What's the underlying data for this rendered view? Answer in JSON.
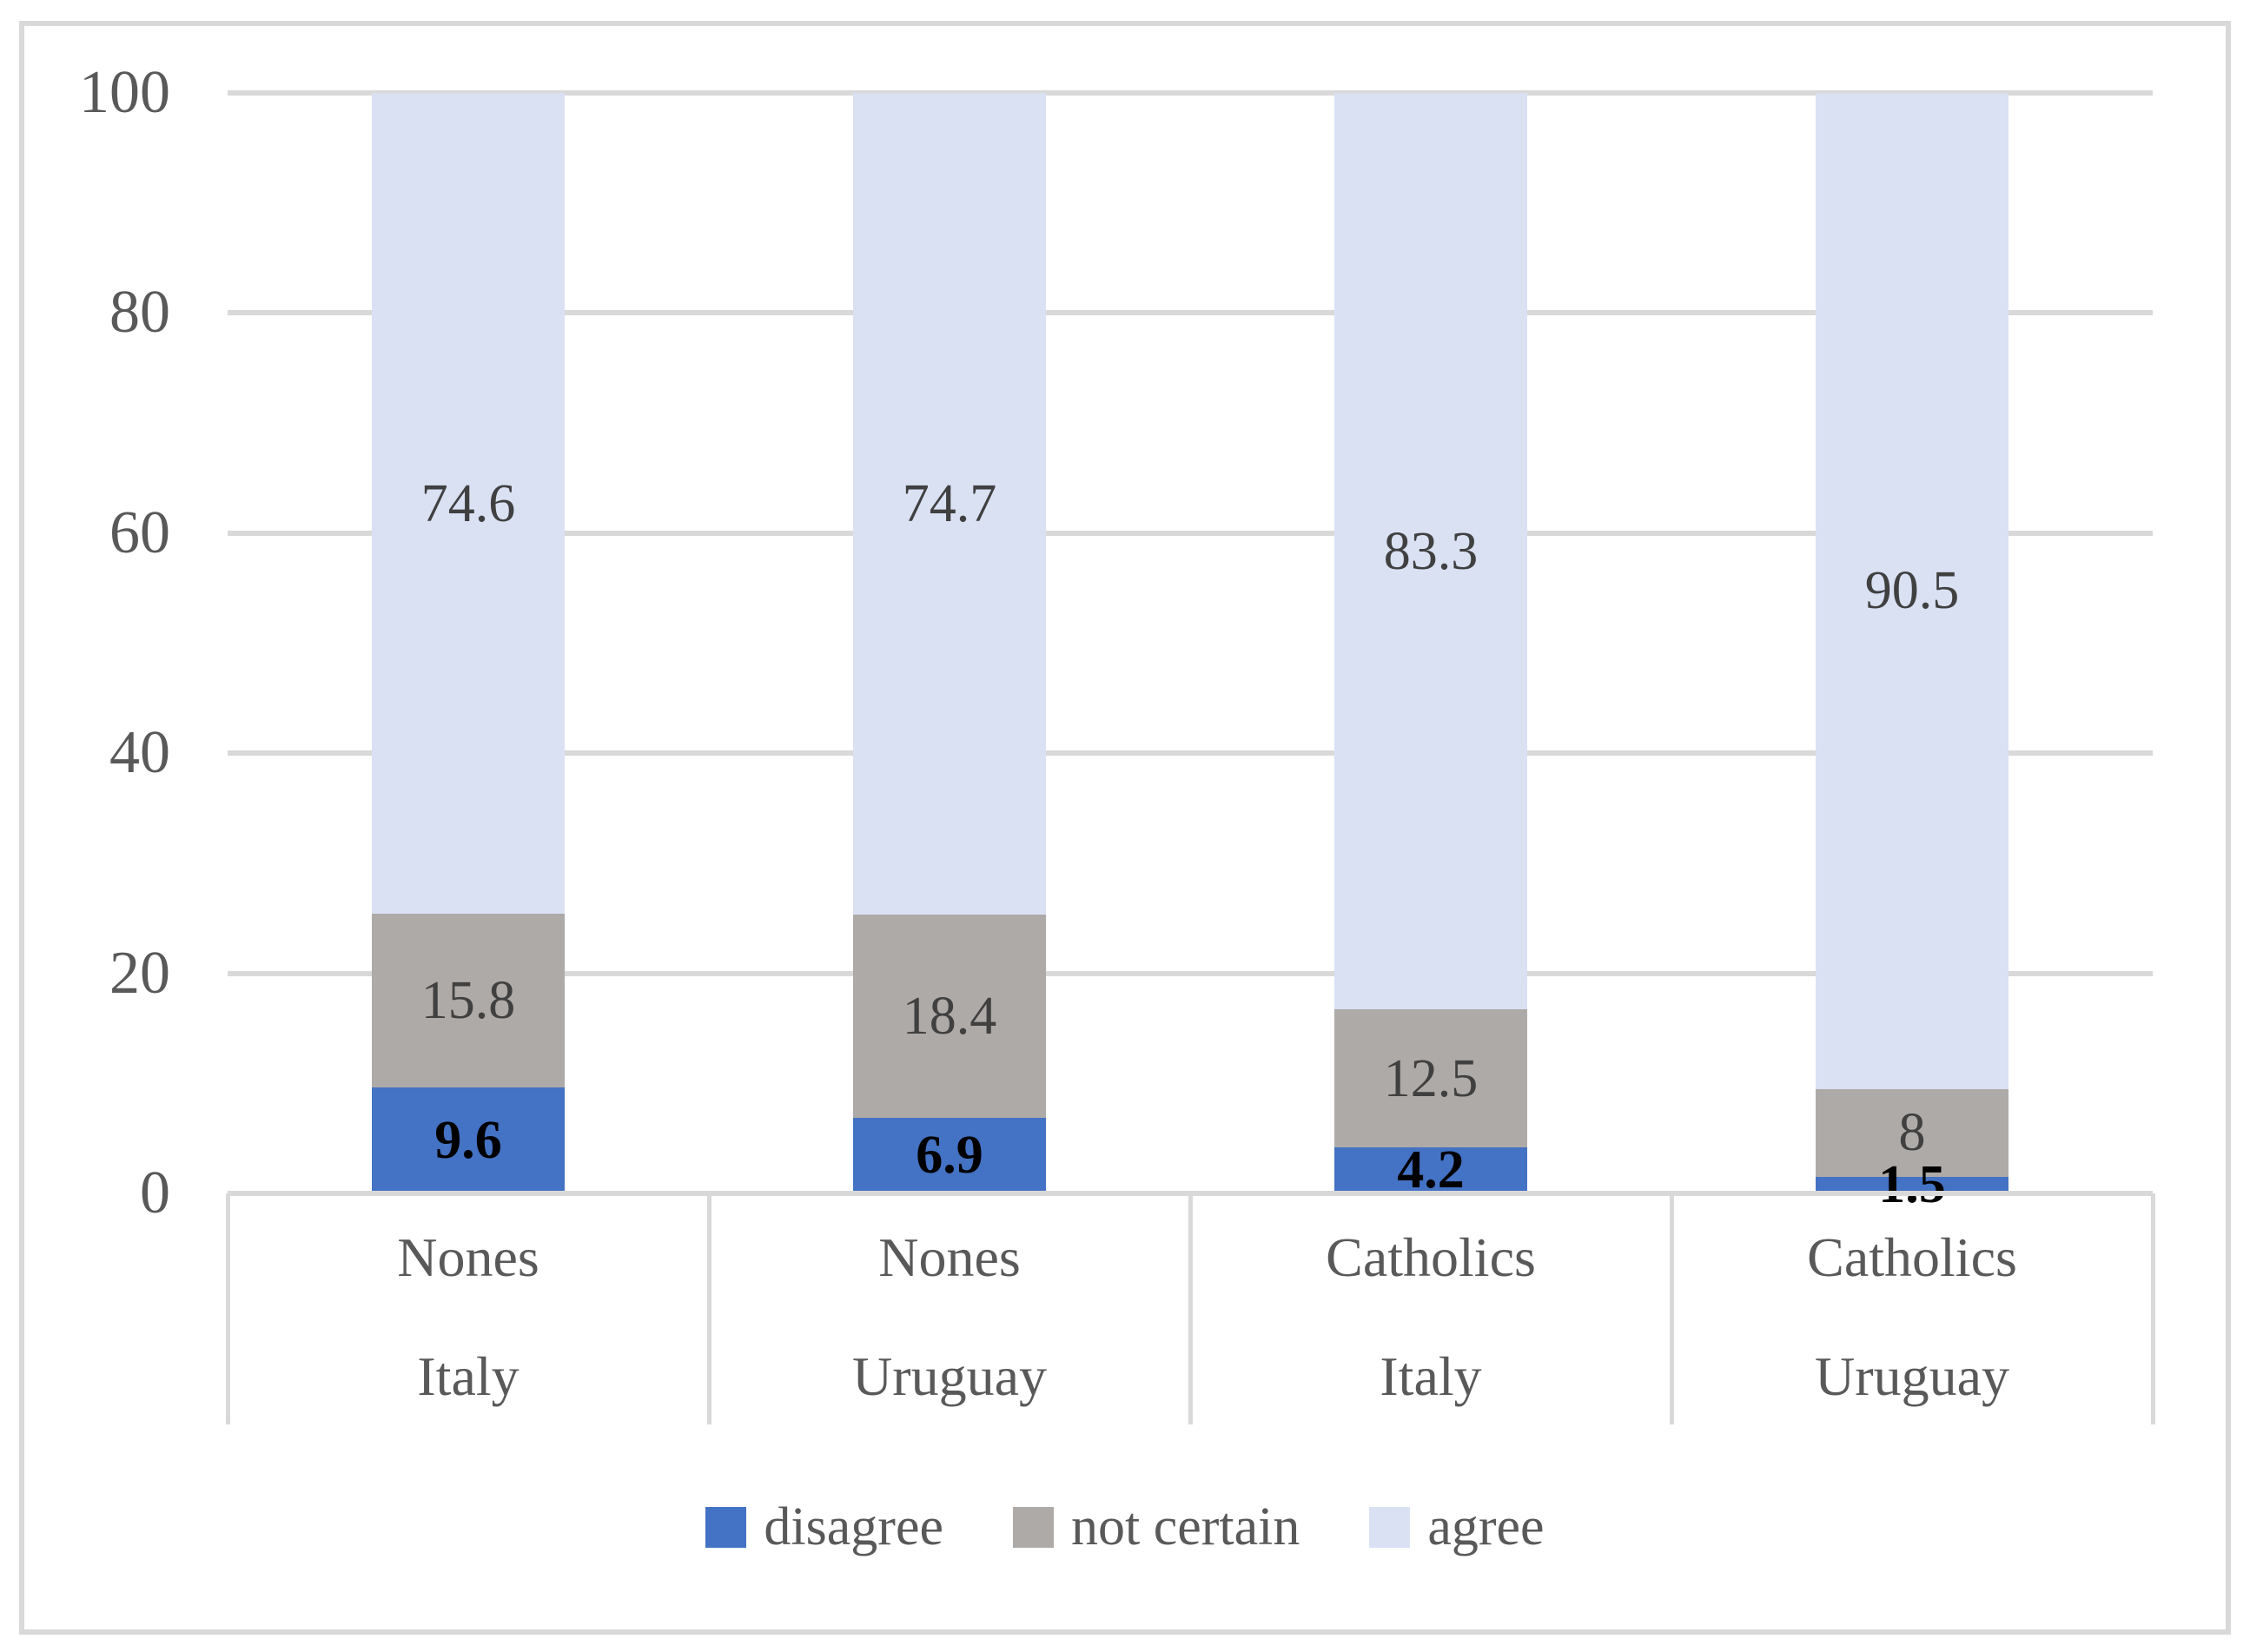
{
  "chart_data": {
    "type": "bar",
    "stacked": true,
    "orientation": "vertical",
    "title": "",
    "xlabel": "",
    "ylabel": "",
    "categories": [
      {
        "religion": "Nones",
        "country": "Italy"
      },
      {
        "religion": "Nones",
        "country": "Uruguay"
      },
      {
        "religion": "Catholics",
        "country": "Italy"
      },
      {
        "religion": "Catholics",
        "country": "Uruguay"
      }
    ],
    "series": [
      {
        "name": "disagree",
        "color": "#4472c4",
        "values": [
          9.6,
          6.9,
          4.2,
          1.5
        ],
        "labels": [
          "9.6",
          "6.9",
          "4.2",
          "1.5"
        ],
        "label_color": "#000000",
        "label_bold": true
      },
      {
        "name": "not certain",
        "color": "#aeaaa8",
        "values": [
          15.8,
          18.4,
          12.5,
          8
        ],
        "labels": [
          "15.8",
          "18.4",
          "12.5",
          "8"
        ],
        "label_color": "#404040",
        "label_bold": false
      },
      {
        "name": "agree",
        "color": "#d9e1f3",
        "values": [
          74.6,
          74.7,
          83.3,
          90.5
        ],
        "labels": [
          "74.6",
          "74.7",
          "83.3",
          "90.5"
        ],
        "label_color": "#404040",
        "label_bold": false
      }
    ],
    "y_axis": {
      "min": 0,
      "max": 100,
      "step": 20,
      "tick_labels": [
        "0",
        "20",
        "40",
        "60",
        "80",
        "100"
      ]
    },
    "grid": true,
    "legend_position": "bottom",
    "colors": {
      "gridline": "#d9d9d9",
      "frame": "#d9d9d9",
      "axis_text": "#595959"
    }
  }
}
